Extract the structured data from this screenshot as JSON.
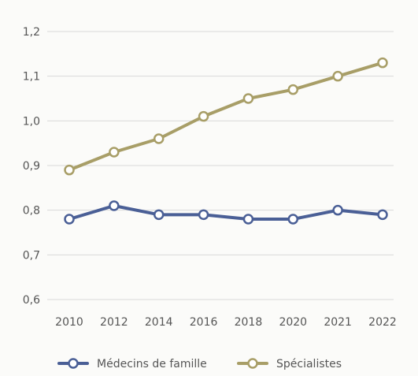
{
  "chart_data": {
    "type": "line",
    "title": "",
    "xlabel": "",
    "ylabel": "",
    "categories": [
      "2010",
      "2012",
      "2014",
      "2016",
      "2018",
      "2020",
      "2021",
      "2022"
    ],
    "ylim": [
      0.6,
      1.2
    ],
    "y_ticks": [
      "0,6",
      "0,7",
      "0,8",
      "0,9",
      "1,0",
      "1,1",
      "1,2"
    ],
    "grid": true,
    "legend_position": "bottom",
    "series": [
      {
        "name": "Médecins de famille",
        "values": [
          0.78,
          0.81,
          0.79,
          0.79,
          0.78,
          0.78,
          0.8,
          0.79
        ],
        "color": "#4a5f96"
      },
      {
        "name": "Spécialistes",
        "values": [
          0.89,
          0.93,
          0.96,
          1.01,
          1.05,
          1.07,
          1.1,
          1.13
        ],
        "color": "#a89e67"
      }
    ]
  }
}
